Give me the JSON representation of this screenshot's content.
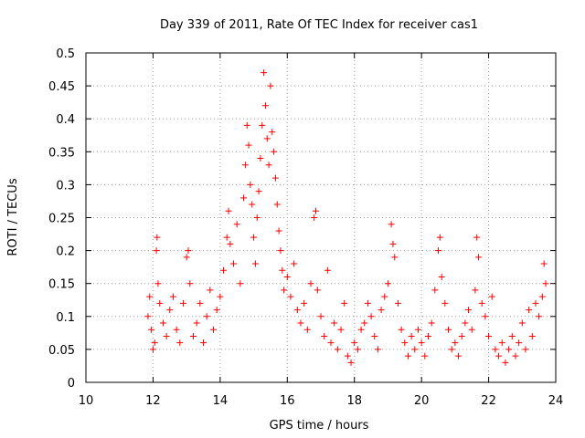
{
  "chart_data": {
    "type": "scatter",
    "title": "Day 339 of 2011, Rate Of TEC Index for receiver cas1",
    "xlabel": "GPS time / hours",
    "ylabel": "ROTI / TECUs",
    "xlim": [
      10,
      24
    ],
    "ylim": [
      0,
      0.5
    ],
    "x_ticks": [
      "10",
      "12",
      "14",
      "16",
      "18",
      "20",
      "22",
      "24"
    ],
    "y_ticks": [
      "0",
      "0.05",
      "0.1",
      "0.15",
      "0.2",
      "0.25",
      "0.3",
      "0.35",
      "0.4",
      "0.45",
      "0.5"
    ],
    "grid": true,
    "marker": "+",
    "color": "#ff0000",
    "series": [
      {
        "x": [
          11.85,
          11.9,
          11.95,
          12.0,
          12.05,
          12.1,
          12.12,
          12.15,
          12.2,
          12.3,
          12.4,
          12.5,
          12.6,
          12.7,
          12.8,
          12.9,
          13.0,
          13.05,
          13.1,
          13.2,
          13.3,
          13.4,
          13.5,
          13.6,
          13.7,
          13.8,
          13.9,
          14.0,
          14.1,
          14.2,
          14.25,
          14.3,
          14.4,
          14.5,
          14.6,
          14.7,
          14.75,
          14.8,
          14.85,
          14.9,
          14.95,
          15.0,
          15.05,
          15.1,
          15.15,
          15.2,
          15.25,
          15.3,
          15.35,
          15.4,
          15.45,
          15.5,
          15.55,
          15.6,
          15.65,
          15.7,
          15.75,
          15.8,
          15.85,
          15.9,
          16.0,
          16.1,
          16.2,
          16.3,
          16.4,
          16.5,
          16.6,
          16.7,
          16.8,
          16.85,
          16.9,
          17.0,
          17.1,
          17.2,
          17.3,
          17.4,
          17.5,
          17.6,
          17.7,
          17.8,
          17.9,
          18.0,
          18.1,
          18.2,
          18.3,
          18.4,
          18.5,
          18.6,
          18.7,
          18.8,
          18.9,
          19.0,
          19.1,
          19.15,
          19.2,
          19.3,
          19.4,
          19.5,
          19.6,
          19.7,
          19.8,
          19.9,
          20.0,
          20.1,
          20.2,
          20.3,
          20.4,
          20.5,
          20.55,
          20.6,
          20.7,
          20.8,
          20.9,
          21.0,
          21.1,
          21.2,
          21.3,
          21.4,
          21.5,
          21.6,
          21.65,
          21.7,
          21.8,
          21.9,
          22.0,
          22.1,
          22.2,
          22.3,
          22.4,
          22.5,
          22.6,
          22.7,
          22.8,
          22.9,
          23.0,
          23.1,
          23.2,
          23.3,
          23.4,
          23.5,
          23.6,
          23.65,
          23.7
        ],
        "y": [
          0.1,
          0.13,
          0.08,
          0.05,
          0.06,
          0.2,
          0.22,
          0.15,
          0.12,
          0.09,
          0.07,
          0.11,
          0.13,
          0.08,
          0.06,
          0.12,
          0.19,
          0.2,
          0.15,
          0.07,
          0.09,
          0.12,
          0.06,
          0.1,
          0.14,
          0.08,
          0.11,
          0.13,
          0.17,
          0.22,
          0.26,
          0.21,
          0.18,
          0.24,
          0.15,
          0.28,
          0.33,
          0.39,
          0.36,
          0.3,
          0.27,
          0.22,
          0.18,
          0.25,
          0.29,
          0.34,
          0.39,
          0.47,
          0.42,
          0.37,
          0.33,
          0.45,
          0.38,
          0.35,
          0.31,
          0.27,
          0.23,
          0.2,
          0.17,
          0.14,
          0.16,
          0.13,
          0.18,
          0.11,
          0.09,
          0.12,
          0.08,
          0.15,
          0.25,
          0.26,
          0.14,
          0.1,
          0.07,
          0.17,
          0.06,
          0.09,
          0.05,
          0.08,
          0.12,
          0.04,
          0.03,
          0.06,
          0.05,
          0.08,
          0.09,
          0.12,
          0.1,
          0.07,
          0.05,
          0.11,
          0.13,
          0.15,
          0.24,
          0.21,
          0.19,
          0.12,
          0.08,
          0.06,
          0.04,
          0.07,
          0.05,
          0.08,
          0.06,
          0.04,
          0.07,
          0.09,
          0.14,
          0.2,
          0.22,
          0.16,
          0.12,
          0.08,
          0.05,
          0.06,
          0.04,
          0.07,
          0.09,
          0.11,
          0.08,
          0.14,
          0.22,
          0.19,
          0.12,
          0.1,
          0.07,
          0.13,
          0.05,
          0.04,
          0.06,
          0.03,
          0.05,
          0.07,
          0.04,
          0.06,
          0.09,
          0.05,
          0.11,
          0.07,
          0.12,
          0.1,
          0.13,
          0.18,
          0.15
        ]
      }
    ]
  }
}
